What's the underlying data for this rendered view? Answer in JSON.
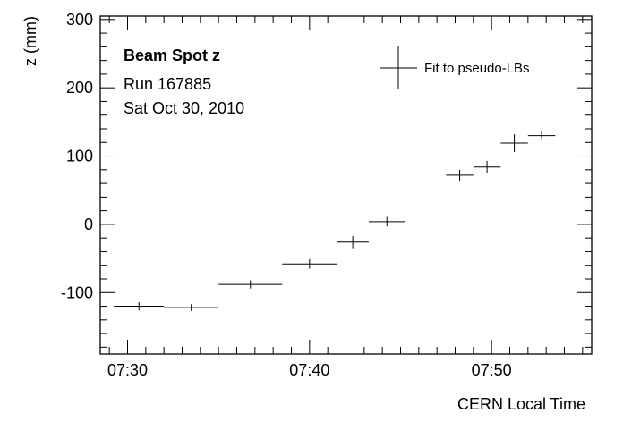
{
  "chart_data": {
    "type": "scatter",
    "title": "Beam Spot z",
    "subtitle_lines": [
      "Run 167885",
      "Sat Oct 30, 2010"
    ],
    "xlabel": "CERN Local Time",
    "ylabel": "z (mm)",
    "xlim": [
      "07:28:30",
      "07:55:30"
    ],
    "ylim": [
      -190,
      305
    ],
    "x_ticks": [
      "07:30",
      "07:40",
      "07:50"
    ],
    "y_ticks": [
      -100,
      0,
      100,
      200,
      300
    ],
    "legend": {
      "label": "Fit to pseudo-LBs",
      "placement": "top-right"
    },
    "series": [
      {
        "name": "Fit to pseudo-LBs",
        "points": [
          {
            "x_start": "07:29:15",
            "x_end": "07:32:00",
            "y": -120,
            "y_err": 6
          },
          {
            "x_start": "07:32:00",
            "x_end": "07:35:00",
            "y": -122,
            "y_err": 5
          },
          {
            "x_start": "07:35:00",
            "x_end": "07:38:30",
            "y": -88,
            "y_err": 6
          },
          {
            "x_start": "07:38:30",
            "x_end": "07:41:30",
            "y": -58,
            "y_err": 7
          },
          {
            "x_start": "07:41:30",
            "x_end": "07:43:15",
            "y": -26,
            "y_err": 9
          },
          {
            "x_start": "07:43:15",
            "x_end": "07:45:15",
            "y": 4,
            "y_err": 7
          },
          {
            "x_start": "07:47:30",
            "x_end": "07:49:00",
            "y": 72,
            "y_err": 8
          },
          {
            "x_start": "07:49:00",
            "x_end": "07:50:30",
            "y": 84,
            "y_err": 9
          },
          {
            "x_start": "07:50:30",
            "x_end": "07:52:00",
            "y": 119,
            "y_err": 13
          },
          {
            "x_start": "07:52:00",
            "x_end": "07:53:30",
            "y": 130,
            "y_err": 6
          }
        ]
      }
    ]
  }
}
